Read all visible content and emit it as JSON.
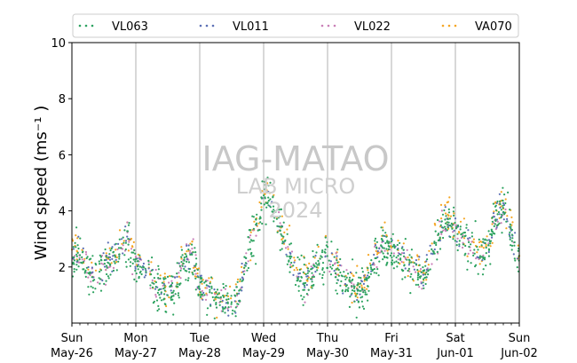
{
  "chart_data": {
    "type": "scatter",
    "title": "",
    "xlabel": "",
    "ylabel": "Wind speed (ms⁻¹ )",
    "ylim": [
      0,
      10
    ],
    "yticks": [
      2,
      4,
      6,
      8,
      10
    ],
    "xlim": [
      "2024-05-26",
      "2024-06-02"
    ],
    "xticks": [
      {
        "day": "Sun",
        "date": "May-26"
      },
      {
        "day": "Mon",
        "date": "May-27"
      },
      {
        "day": "Tue",
        "date": "May-28"
      },
      {
        "day": "Wed",
        "date": "May-29"
      },
      {
        "day": "Thu",
        "date": "May-30"
      },
      {
        "day": "Fri",
        "date": "May-31"
      },
      {
        "day": "Sat",
        "date": "Jun-01"
      },
      {
        "day": "Sun",
        "date": "Jun-02"
      }
    ],
    "grid": "vertical at day boundaries",
    "legend_position": "top, above plot",
    "watermark": [
      "IAG-MATAO",
      "LAB MICRO",
      "2024"
    ],
    "series": [
      {
        "name": "VL063",
        "color": "#2ca25f"
      },
      {
        "name": "VL011",
        "color": "#5b6fb5"
      },
      {
        "name": "VL022",
        "color": "#c97fb7"
      },
      {
        "name": "VA070",
        "color": "#f5a623"
      }
    ],
    "daily_profile": [
      {
        "date": "2024-05-26",
        "values": [
          2.4,
          2.6,
          1.8,
          1.5,
          2.0,
          2.2,
          2.5,
          2.9
        ]
      },
      {
        "date": "2024-05-27",
        "values": [
          2.1,
          1.9,
          1.6,
          1.2,
          1.0,
          1.4,
          2.2,
          2.4
        ]
      },
      {
        "date": "2024-05-28",
        "values": [
          1.3,
          1.1,
          0.9,
          0.6,
          0.7,
          1.0,
          2.6,
          3.3
        ]
      },
      {
        "date": "2024-05-29",
        "values": [
          4.6,
          4.3,
          3.5,
          2.6,
          1.7,
          1.3,
          1.8,
          2.2
        ]
      },
      {
        "date": "2024-05-30",
        "values": [
          2.3,
          2.0,
          1.6,
          1.3,
          1.1,
          1.5,
          2.4,
          2.8
        ]
      },
      {
        "date": "2024-05-31",
        "values": [
          2.6,
          2.3,
          2.1,
          1.9,
          1.6,
          2.4,
          3.2,
          3.6
        ]
      },
      {
        "date": "2024-06-01",
        "values": [
          3.3,
          3.0,
          2.7,
          2.3,
          2.6,
          3.7,
          4.0,
          3.2
        ]
      },
      {
        "date": "2024-06-02",
        "values": [
          2.0
        ]
      }
    ]
  }
}
